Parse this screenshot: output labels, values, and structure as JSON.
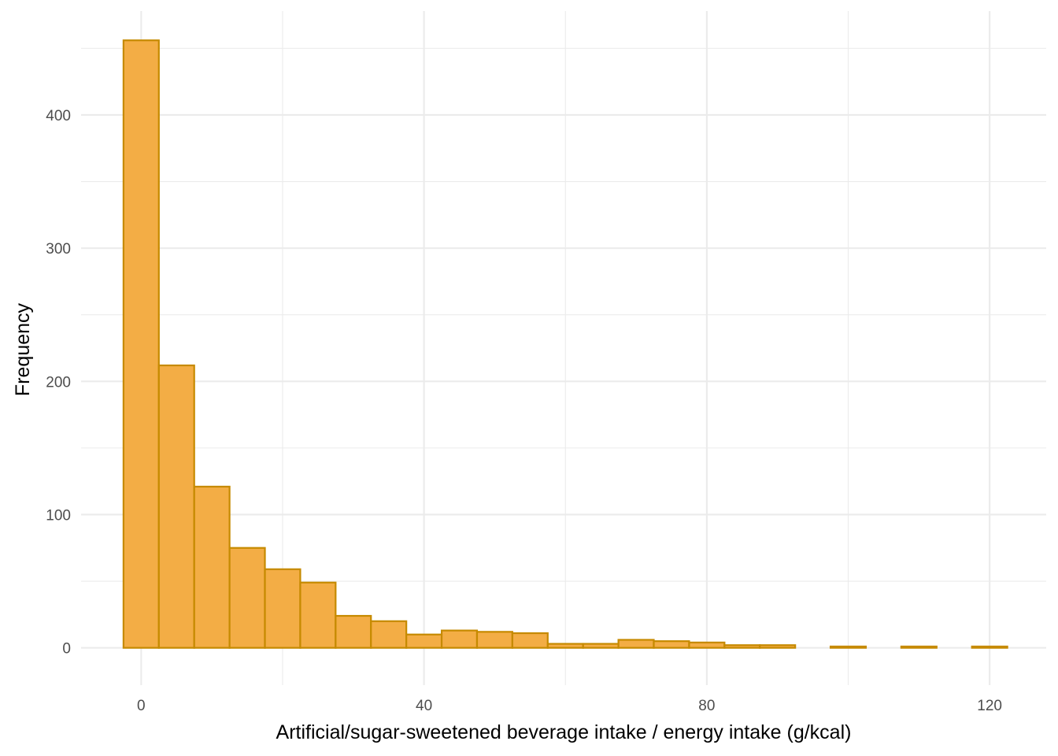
{
  "chart_data": {
    "type": "bar",
    "subtype": "histogram",
    "title": "",
    "xlabel": "Artificial/sugar-sweetened beverage intake / energy intake (g/kcal)",
    "ylabel": "Frequency",
    "xlim": [
      -8.5,
      128
    ],
    "ylim": [
      -28,
      478
    ],
    "x_ticks": [
      0,
      40,
      80,
      120
    ],
    "y_ticks": [
      0,
      100,
      200,
      300,
      400
    ],
    "x_tick_labels": [
      "0",
      "40",
      "80",
      "120"
    ],
    "y_tick_labels": [
      "0",
      "100",
      "200",
      "300",
      "400"
    ],
    "grid": true,
    "legend": "none",
    "colors": {
      "fill": "#F3AD45",
      "stroke": "#C68A00",
      "grid": "#EBEBEB",
      "background": "#FFFFFF"
    },
    "bin_width": 5,
    "bin_centers": [
      0,
      5,
      10,
      15,
      20,
      25,
      30,
      35,
      40,
      45,
      50,
      55,
      60,
      65,
      70,
      75,
      80,
      85,
      90,
      95,
      100,
      105,
      110,
      115,
      120
    ],
    "values": [
      456,
      212,
      121,
      75,
      59,
      49,
      24,
      20,
      10,
      13,
      12,
      11,
      3,
      3,
      6,
      5,
      4,
      2,
      2,
      0,
      1,
      0,
      1,
      0,
      1
    ]
  }
}
